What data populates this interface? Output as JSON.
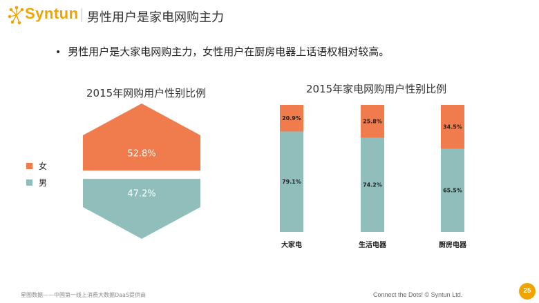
{
  "header": {
    "logo_text": "Syntun",
    "title": "男性用户是家电网购主力"
  },
  "bullet": "男性用户是大家电网购主力，女性用户在厨房电器上话语权相对较高。",
  "colors": {
    "female": "#f07b4c",
    "male": "#90bfbb",
    "accent": "#f0a400"
  },
  "chart_data": [
    {
      "type": "area",
      "title": "2015年网购用户性别比例",
      "legend_position": "left",
      "series": [
        {
          "name": "女",
          "value": 52.8,
          "label": "52.8%"
        },
        {
          "name": "男",
          "value": 47.2,
          "label": "47.2%"
        }
      ]
    },
    {
      "type": "bar",
      "stacked": true,
      "percent": true,
      "title": "2015年家电网购用户性别比例",
      "categories": [
        "大家电",
        "生活电器",
        "厨房电器"
      ],
      "series": [
        {
          "name": "女",
          "values": [
            20.9,
            25.8,
            34.5
          ],
          "labels": [
            "20.9%",
            "25.8%",
            "34.5%"
          ]
        },
        {
          "name": "男",
          "values": [
            79.1,
            74.2,
            65.5
          ],
          "labels": [
            "79.1%",
            "74.2%",
            "65.5%"
          ]
        }
      ]
    }
  ],
  "legend": [
    {
      "label": "女",
      "color": "#f07b4c"
    },
    {
      "label": "男",
      "color": "#90bfbb"
    }
  ],
  "footer": {
    "left": "星图数据——中国第一线上消费大数据DaaS提供商",
    "right": "Connect the Dots!  © Syntun Ltd.",
    "page_number": "25"
  }
}
